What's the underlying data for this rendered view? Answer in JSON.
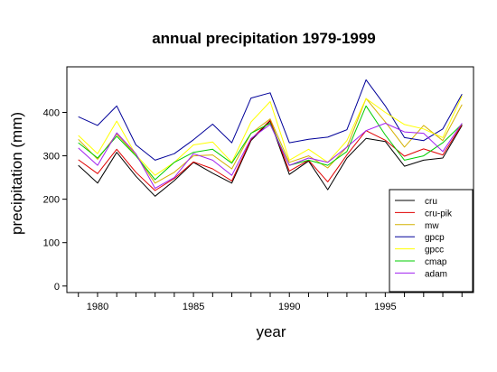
{
  "chart_data": {
    "type": "line",
    "title": "annual precipitation 1979-1999",
    "xlabel": "year",
    "ylabel": "precipitation (mm)",
    "xlim": [
      1978.4,
      1999.6
    ],
    "ylim": [
      -15,
      505
    ],
    "x_ticks": [
      1980,
      1985,
      1990,
      1995
    ],
    "y_ticks": [
      0,
      100,
      200,
      300,
      400
    ],
    "grid": false,
    "legend_position": "bottom-right",
    "x": [
      1979,
      1980,
      1981,
      1982,
      1983,
      1984,
      1985,
      1986,
      1987,
      1988,
      1989,
      1990,
      1991,
      1992,
      1993,
      1994,
      1995,
      1996,
      1997,
      1998,
      1999
    ],
    "series": [
      {
        "name": "cru",
        "color": "#000000",
        "values": [
          278,
          237,
          308,
          253,
          207,
          243,
          285,
          260,
          237,
          335,
          380,
          257,
          288,
          222,
          295,
          340,
          333,
          276,
          290,
          295,
          370
        ]
      },
      {
        "name": "cru-pik",
        "color": "#e00000",
        "values": [
          291,
          259,
          315,
          262,
          220,
          248,
          286,
          270,
          242,
          338,
          382,
          265,
          290,
          240,
          302,
          358,
          336,
          299,
          316,
          302,
          372
        ]
      },
      {
        "name": "mw",
        "color": "#d4b000",
        "values": [
          338,
          292,
          350,
          302,
          237,
          262,
          300,
          302,
          270,
          352,
          385,
          285,
          300,
          272,
          320,
          432,
          378,
          320,
          370,
          335,
          418
        ]
      },
      {
        "name": "gpcp",
        "color": "#000099",
        "values": [
          390,
          370,
          415,
          325,
          290,
          305,
          337,
          373,
          330,
          433,
          445,
          330,
          338,
          343,
          360,
          475,
          415,
          342,
          335,
          362,
          442
        ]
      },
      {
        "name": "gpcc",
        "color": "#ffff00",
        "values": [
          347,
          305,
          380,
          302,
          255,
          285,
          325,
          332,
          285,
          378,
          425,
          290,
          315,
          285,
          335,
          432,
          400,
          372,
          362,
          342,
          438
        ]
      },
      {
        "name": "cmap",
        "color": "#00cc00",
        "values": [
          330,
          295,
          345,
          300,
          245,
          285,
          308,
          315,
          283,
          352,
          375,
          278,
          290,
          278,
          310,
          415,
          348,
          290,
          300,
          330,
          373
        ]
      },
      {
        "name": "adam",
        "color": "#a020f0",
        "values": [
          318,
          278,
          353,
          305,
          225,
          250,
          305,
          290,
          255,
          340,
          372,
          278,
          295,
          285,
          320,
          358,
          375,
          355,
          352,
          310,
          375
        ]
      }
    ]
  }
}
